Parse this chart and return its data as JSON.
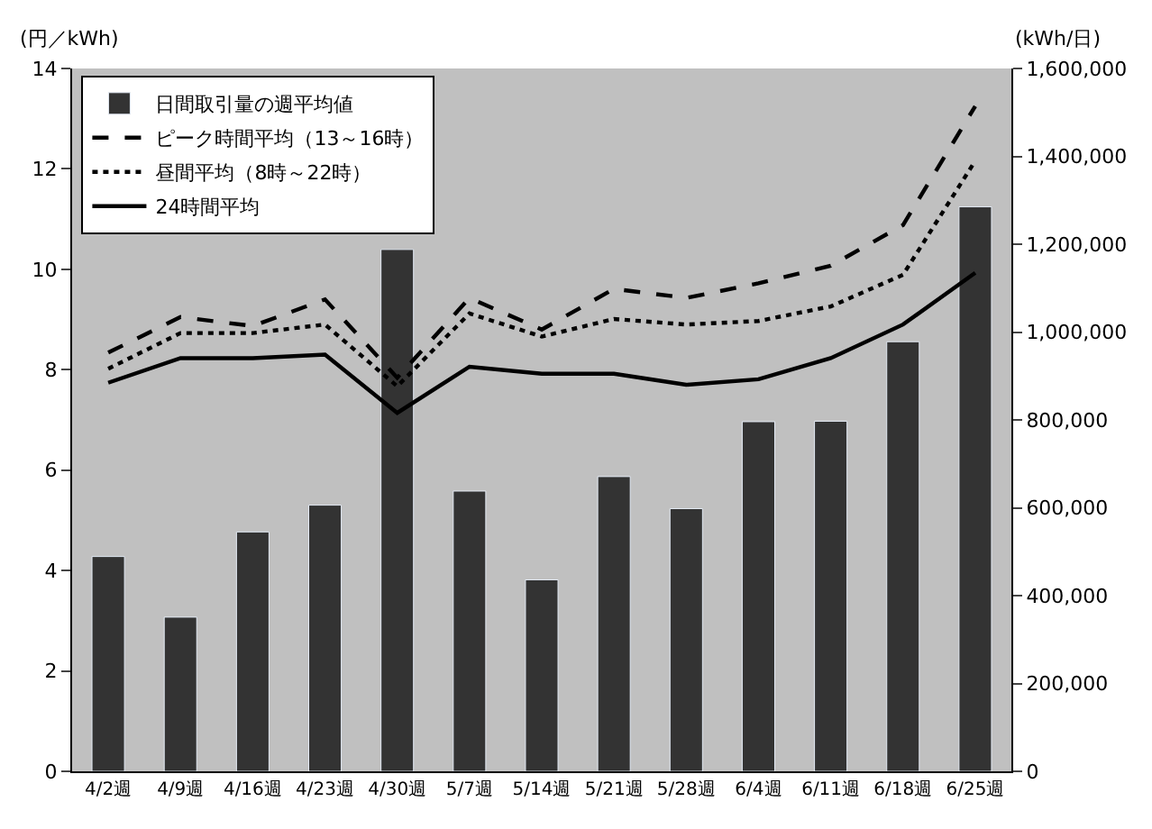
{
  "chart_data": {
    "type": "bar",
    "ylabel": "(円／kWh)",
    "y2label": "(kWh/日)",
    "categories": [
      "4/2週",
      "4/9週",
      "4/16週",
      "4/23週",
      "4/30週",
      "5/7週",
      "5/14週",
      "5/21週",
      "5/28週",
      "6/4週",
      "6/11週",
      "6/18週",
      "6/25週"
    ],
    "series": [
      {
        "name": "日間取引量の週平均値",
        "axis": "y2",
        "color": "#333333",
        "values": [
          489000,
          351000,
          545000,
          606000,
          1188000,
          638000,
          436000,
          671000,
          598000,
          796000,
          797000,
          978000,
          1285000
        ]
      },
      {
        "name": "ピーク時間平均（13～16時）",
        "type": "line",
        "line_style": "dashed",
        "color": "#000000",
        "values": [
          8.34,
          9.05,
          8.87,
          9.4,
          7.84,
          9.43,
          8.8,
          9.61,
          9.43,
          9.72,
          10.07,
          10.88,
          13.25
        ]
      },
      {
        "name": "昼間平均（8時～22時）",
        "type": "line",
        "line_style": "dotted",
        "color": "#000000",
        "values": [
          8.02,
          8.73,
          8.73,
          8.9,
          7.67,
          9.12,
          8.66,
          9.01,
          8.9,
          8.97,
          9.26,
          9.89,
          12.16
        ]
      },
      {
        "name": "24時間平均",
        "type": "line",
        "line_style": "solid",
        "color": "#000000",
        "values": [
          7.74,
          8.23,
          8.23,
          8.3,
          7.14,
          8.06,
          7.92,
          7.92,
          7.7,
          7.81,
          8.23,
          8.9,
          9.93
        ]
      }
    ],
    "ylim": [
      0,
      14
    ],
    "yticks": [
      0,
      2,
      4,
      6,
      8,
      10,
      12,
      14
    ],
    "y2lim": [
      0,
      1600000
    ],
    "y2ticks": [
      0,
      {
        "value": 200000,
        "label": "200,000"
      },
      {
        "value": 400000,
        "label": "400,000"
      },
      {
        "value": 600000,
        "label": "600,000"
      },
      {
        "value": 800000,
        "label": "800,000"
      },
      {
        "value": 1000000,
        "label": "1,000,000"
      },
      {
        "value": 1200000,
        "label": "1,200,000"
      },
      {
        "value": 1400000,
        "label": "1,400,000"
      },
      {
        "value": 1600000,
        "label": "1,600,000"
      }
    ],
    "grid": false,
    "legend": "top left",
    "marker": "none"
  }
}
